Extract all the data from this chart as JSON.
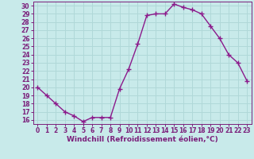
{
  "x": [
    0,
    1,
    2,
    3,
    4,
    5,
    6,
    7,
    8,
    9,
    10,
    11,
    12,
    13,
    14,
    15,
    16,
    17,
    18,
    19,
    20,
    21,
    22,
    23
  ],
  "y": [
    20,
    19,
    18,
    17,
    16.5,
    15.8,
    16.3,
    16.3,
    16.3,
    19.8,
    22.2,
    25.3,
    28.8,
    29,
    29,
    30.2,
    29.8,
    29.5,
    29,
    27.5,
    26,
    24,
    23,
    20.8
  ],
  "line_color": "#8B1A8B",
  "marker": "+",
  "marker_size": 4,
  "background_color": "#c8eaea",
  "grid_color": "#b0d8d8",
  "xlabel": "Windchill (Refroidissement éolien,°C)",
  "ylim": [
    15.5,
    30.5
  ],
  "xlim": [
    -0.5,
    23.5
  ],
  "yticks": [
    16,
    17,
    18,
    19,
    20,
    21,
    22,
    23,
    24,
    25,
    26,
    27,
    28,
    29,
    30
  ],
  "xticks": [
    0,
    1,
    2,
    3,
    4,
    5,
    6,
    7,
    8,
    9,
    10,
    11,
    12,
    13,
    14,
    15,
    16,
    17,
    18,
    19,
    20,
    21,
    22,
    23
  ],
  "tick_fontsize": 5.5,
  "xlabel_fontsize": 6.5,
  "spine_color": "#7B1F7B",
  "linewidth": 1.0,
  "marker_linewidth": 1.0
}
